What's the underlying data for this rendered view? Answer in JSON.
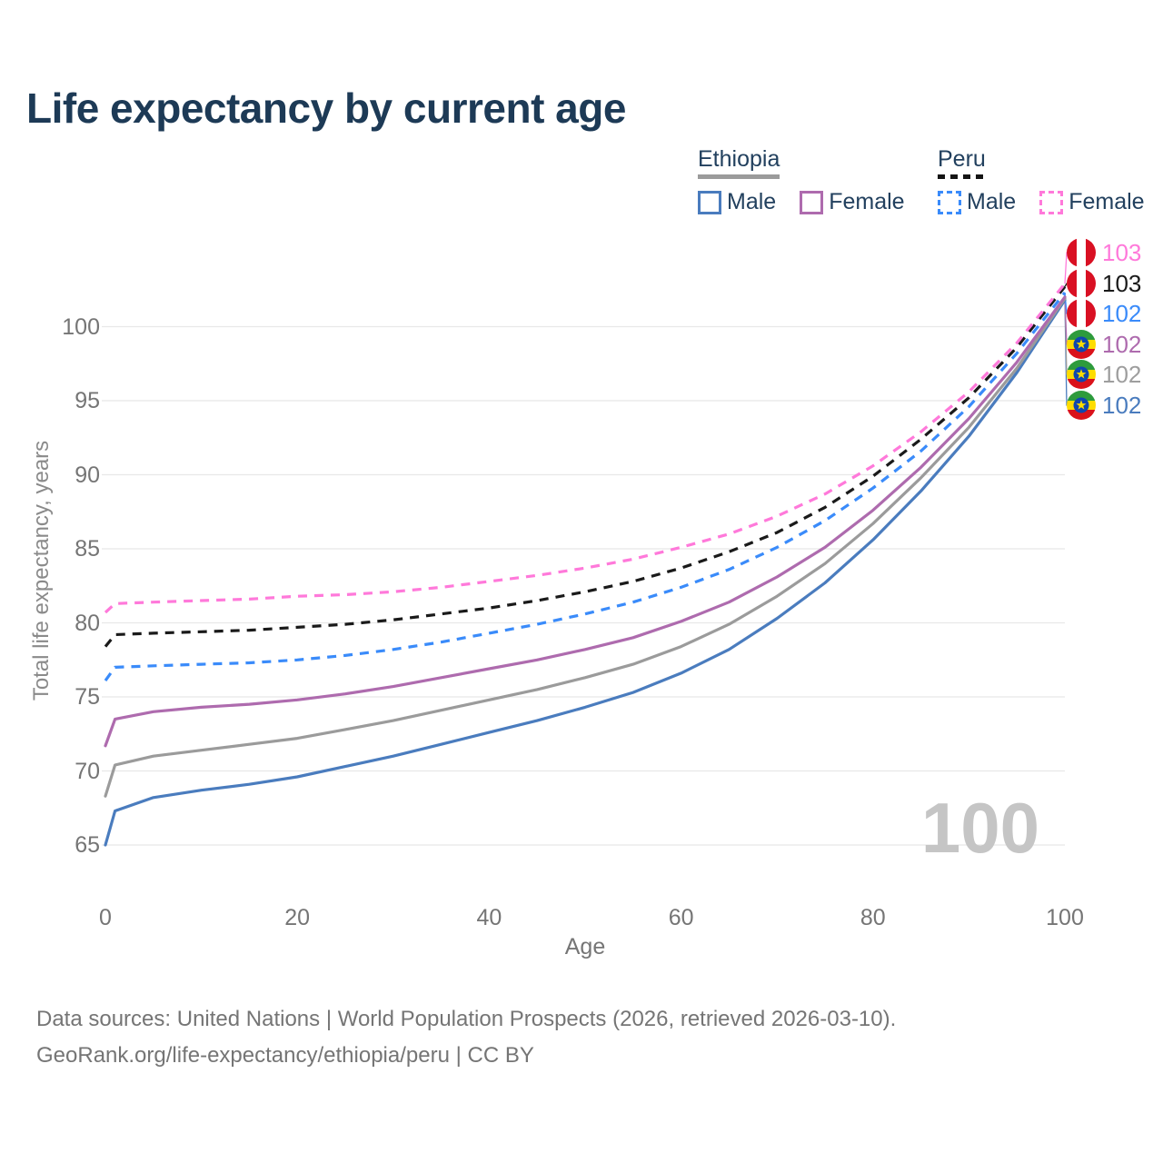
{
  "header": {
    "title": "Life expectancy by current age"
  },
  "legend": {
    "groups": [
      {
        "label": "Ethiopia",
        "line_style": "solid",
        "underline_color": "#9b9b9b",
        "items": [
          {
            "label": "Male",
            "color": "#4a7cbe"
          },
          {
            "label": "Female",
            "color": "#ae6bae"
          }
        ]
      },
      {
        "label": "Peru",
        "line_style": "dashed",
        "underline_color": "#141414",
        "items": [
          {
            "label": "Male",
            "color": "#3a8bfa"
          },
          {
            "label": "Female",
            "color": "#ff79da"
          }
        ]
      }
    ]
  },
  "chart_data": {
    "type": "line",
    "title": "Life expectancy by current age",
    "xlabel": "Age",
    "ylabel": "Total life expectancy, years",
    "x_ticks": [
      0,
      20,
      40,
      60,
      80,
      100
    ],
    "y_ticks": [
      65,
      70,
      75,
      80,
      85,
      90,
      95,
      100
    ],
    "xlim": [
      0,
      100
    ],
    "ylim": [
      63,
      104.5
    ],
    "grid": "horizontal-only",
    "legend_position": "top-right",
    "age_indicator": "100",
    "x": [
      0,
      1,
      5,
      10,
      15,
      20,
      25,
      30,
      35,
      40,
      45,
      50,
      55,
      60,
      65,
      70,
      75,
      80,
      85,
      90,
      95,
      100
    ],
    "series": [
      {
        "name": "Ethiopia Male",
        "country": "Ethiopia",
        "sex": "male",
        "color": "#4a7cbe",
        "dash": false,
        "row": 5,
        "values": [
          65.0,
          67.3,
          68.2,
          68.7,
          69.1,
          69.6,
          70.3,
          71.0,
          71.8,
          72.6,
          73.4,
          74.3,
          75.3,
          76.6,
          78.2,
          80.3,
          82.7,
          85.6,
          88.9,
          92.6,
          96.9,
          101.8
        ]
      },
      {
        "name": "Ethiopia",
        "country": "Ethiopia",
        "sex": "all",
        "color": "#9b9b9b",
        "dash": false,
        "row": 4,
        "values": [
          68.3,
          70.4,
          71.0,
          71.4,
          71.8,
          72.2,
          72.8,
          73.4,
          74.1,
          74.8,
          75.5,
          76.3,
          77.2,
          78.4,
          79.9,
          81.8,
          84.0,
          86.7,
          89.8,
          93.2,
          97.2,
          101.9
        ]
      },
      {
        "name": "Ethiopia Female",
        "country": "Ethiopia",
        "sex": "female",
        "color": "#ae6bae",
        "dash": false,
        "row": 3,
        "values": [
          71.7,
          73.5,
          74.0,
          74.3,
          74.5,
          74.8,
          75.2,
          75.7,
          76.3,
          76.9,
          77.5,
          78.2,
          79.0,
          80.1,
          81.4,
          83.1,
          85.1,
          87.6,
          90.5,
          93.8,
          97.6,
          102.0
        ]
      },
      {
        "name": "Peru Male",
        "country": "Peru",
        "sex": "male",
        "color": "#3a8bfa",
        "dash": true,
        "row": 2,
        "values": [
          76.1,
          77.0,
          77.1,
          77.2,
          77.3,
          77.5,
          77.8,
          78.2,
          78.7,
          79.3,
          79.9,
          80.6,
          81.4,
          82.4,
          83.6,
          85.1,
          86.9,
          89.1,
          91.6,
          94.6,
          98.2,
          102.3
        ]
      },
      {
        "name": "Peru",
        "country": "Peru",
        "sex": "all",
        "color": "#1a1a1a",
        "dash": true,
        "row": 1,
        "values": [
          78.4,
          79.2,
          79.3,
          79.4,
          79.5,
          79.7,
          79.9,
          80.2,
          80.6,
          81.0,
          81.5,
          82.1,
          82.8,
          83.7,
          84.8,
          86.1,
          87.8,
          89.9,
          92.4,
          95.2,
          98.6,
          102.7
        ]
      },
      {
        "name": "Peru Female",
        "country": "Peru",
        "sex": "female",
        "color": "#ff79da",
        "dash": true,
        "row": 0,
        "values": [
          80.7,
          81.3,
          81.4,
          81.5,
          81.6,
          81.8,
          81.9,
          82.1,
          82.4,
          82.8,
          83.2,
          83.7,
          84.3,
          85.1,
          86.0,
          87.2,
          88.7,
          90.6,
          92.9,
          95.6,
          98.9,
          102.9
        ]
      }
    ],
    "end_labels": [
      {
        "value": "103",
        "color": "#ff79da",
        "flag": "peru-flag-icon",
        "series": "Peru Female"
      },
      {
        "value": "103",
        "color": "#1a1a1a",
        "flag": "peru-flag-icon",
        "series": "Peru"
      },
      {
        "value": "102",
        "color": "#3a8bfa",
        "flag": "peru-flag-icon",
        "series": "Peru Male"
      },
      {
        "value": "102",
        "color": "#ae6bae",
        "flag": "ethiopia-flag-icon",
        "series": "Ethiopia Female"
      },
      {
        "value": "102",
        "color": "#9e9e9e",
        "flag": "ethiopia-flag-icon",
        "series": "Ethiopia"
      },
      {
        "value": "102",
        "color": "#4a7cbe",
        "flag": "ethiopia-flag-icon",
        "series": "Ethiopia Male"
      }
    ],
    "grid_color": "#e8e8e8",
    "axis_text_color": "#757575",
    "watermark_color": "#c5c5c5"
  },
  "footer": {
    "line1": "Data sources: United Nations | World Population Prospects (2026, retrieved 2026-03-10).",
    "line2": "GeoRank.org/life-expectancy/ethiopia/peru | CC BY"
  }
}
